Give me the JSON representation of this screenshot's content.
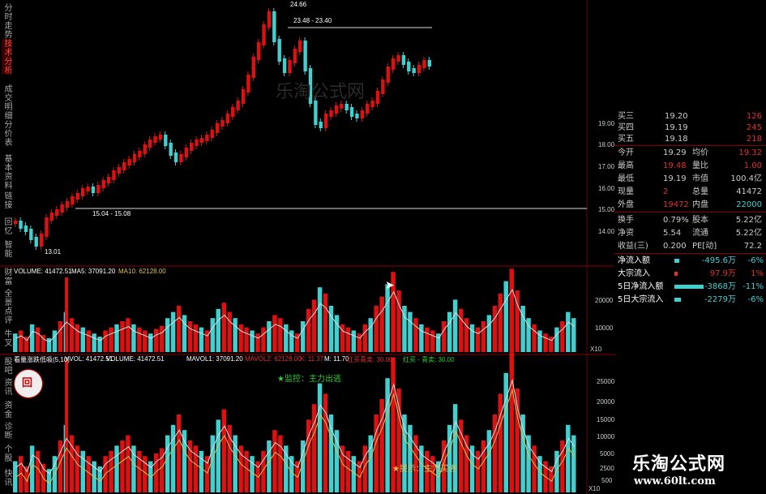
{
  "left_tabs": [
    {
      "label": "分时走势",
      "active": false
    },
    {
      "label": "技术分析",
      "active": true
    },
    {
      "label": "成交明细",
      "active": false
    },
    {
      "label": "分价表",
      "active": false
    },
    {
      "label": "基本资料",
      "active": false
    },
    {
      "label": "链接",
      "active": false
    },
    {
      "label": "回忆",
      "active": false
    },
    {
      "label": "智能",
      "active": false
    },
    {
      "label": "财富",
      "active": false
    },
    {
      "label": "全景",
      "active": false
    },
    {
      "label": "点评",
      "active": false
    },
    {
      "label": "牛叉",
      "active": false
    },
    {
      "label": "股吧",
      "active": false
    },
    {
      "label": "资讯",
      "active": false
    },
    {
      "label": "资金",
      "active": false
    },
    {
      "label": "诊断",
      "active": false
    },
    {
      "label": "个股",
      "active": false
    },
    {
      "label": "快讯",
      "active": false
    }
  ],
  "price_chart": {
    "annotations": {
      "high": "24.66",
      "range_top": "23.48 - 23.40",
      "range_mid": "15.04 - 15.08",
      "low": "13.01"
    },
    "axis_ticks": [
      "19.00",
      "18.00",
      "17.00",
      "16.00",
      "15.00",
      "14.00"
    ],
    "watermark": "乐淘公式网"
  },
  "volume_panel": {
    "header": {
      "volume": "VOLUME: 41472.51",
      "ma5": "MA5: 37091.20",
      "ma10": "MA10: 62128.00"
    },
    "axis_ticks": [
      "20000",
      "10000"
    ],
    "unit": "X10"
  },
  "indicator_panel": {
    "header": {
      "name": "看量涨跌低吸(5,10)",
      "vvol": "VVOL: 41472.51",
      "volume": "VOLUME: 41472.51",
      "mavol1": "MAVOL1: 37091.20",
      "mavol2": "MAVOL2: 62128.00",
      "k": "K: 11.37",
      "m": "M: 11.70",
      "red_buy": "红买青卖: 30.00",
      "red_sell": "红买 - 青卖: 30.00"
    },
    "monitor": "★监控：主力出逃",
    "signal": "★提示：主力买进",
    "axis_ticks": [
      "25000",
      "20000",
      "15000",
      "10000",
      "5000",
      "2500",
      "500"
    ],
    "unit": "X10"
  },
  "quote_panel": {
    "bids": [
      {
        "label": "买三",
        "price": "19.20",
        "vol": "126"
      },
      {
        "label": "买四",
        "price": "19.19",
        "vol": "245"
      },
      {
        "label": "买五",
        "price": "19.18",
        "vol": "218"
      }
    ],
    "stats": [
      {
        "l1": "今开",
        "v1": "19.29",
        "l2": "均价",
        "v2": "19.32"
      },
      {
        "l1": "最高",
        "v1": "19.48",
        "l2": "量比",
        "v2": "1.00"
      },
      {
        "l1": "最低",
        "v1": "19.19",
        "l2": "市值",
        "v2": "100.4亿"
      },
      {
        "l1": "现量",
        "v1": "2",
        "l2": "总量",
        "v2": "41472"
      },
      {
        "l1": "外盘",
        "v1": "19472",
        "l2": "内盘",
        "v2": "22000"
      }
    ],
    "stats2": [
      {
        "l1": "换手",
        "v1": "0.79%",
        "l2": "股本",
        "v2": "5.22亿"
      },
      {
        "l1": "净资",
        "v1": "5.54",
        "l2": "流通",
        "v2": "5.22亿"
      },
      {
        "l1": "收益(三)",
        "v1": "0.200",
        "l2": "PE[动]",
        "v2": "72.2"
      }
    ],
    "flows": [
      {
        "label": "净流入额",
        "value": "-495.6万",
        "pct": "-6%"
      },
      {
        "label": "大宗流入",
        "value": "97.9万",
        "pct": "1%"
      },
      {
        "label": "5日净流入额",
        "value": "-3868万",
        "pct": "-11%"
      },
      {
        "label": "5日大宗流入",
        "value": "-2279万",
        "pct": "-6%"
      }
    ]
  },
  "brand": {
    "name": "乐淘公式网",
    "url": "www.60lt.com"
  },
  "colors": {
    "up": "#e01010",
    "down": "#40d0d0",
    "ma": "#dddddd",
    "grid": "#8a0000",
    "yellow": "#e0c050"
  }
}
